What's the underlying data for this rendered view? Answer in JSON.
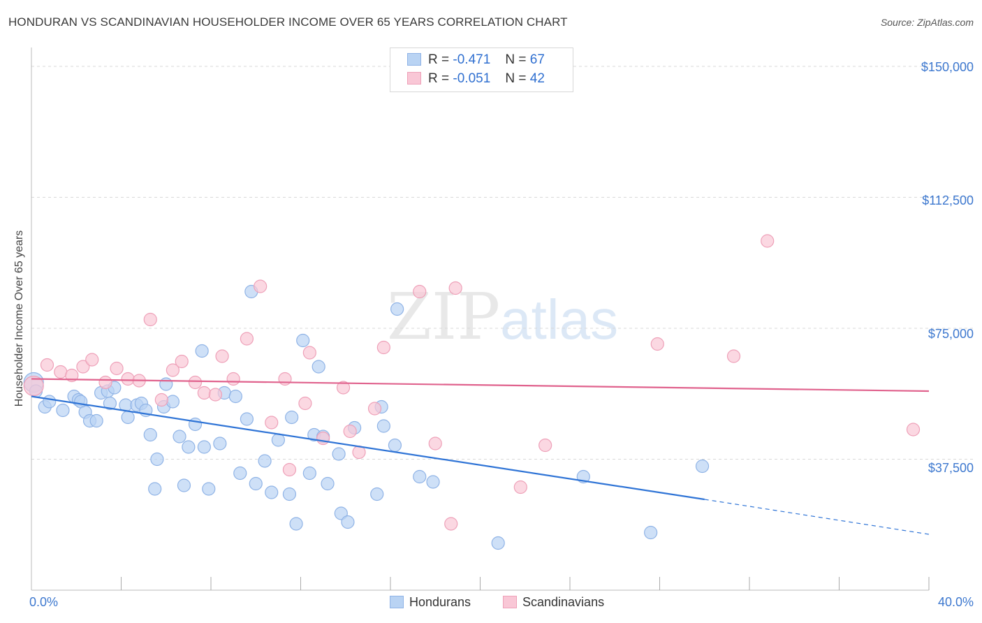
{
  "title": "HONDURAN VS SCANDINAVIAN HOUSEHOLDER INCOME OVER 65 YEARS CORRELATION CHART",
  "source": "Source: ZipAtlas.com",
  "watermark": {
    "zip": "ZIP",
    "atlas": "atlas"
  },
  "legend": {
    "rows": [
      {
        "r_label": "R =",
        "r_value": "-0.471",
        "n_label": "N =",
        "n_value": "67"
      },
      {
        "r_label": "R =",
        "r_value": "-0.051",
        "n_label": "N =",
        "n_value": "42"
      }
    ]
  },
  "colors": {
    "blue_fill": "#b9d3f3",
    "blue_stroke": "#8fb3e6",
    "blue_line": "#2f74d6",
    "pink_fill": "#f9c7d6",
    "pink_stroke": "#eea0b8",
    "pink_line": "#e0628d",
    "grid": "#d8d8d8",
    "tick_text": "#3d78cf"
  },
  "chart_data": {
    "type": "scatter",
    "title": "HONDURAN VS SCANDINAVIAN HOUSEHOLDER INCOME OVER 65 YEARS CORRELATION CHART",
    "xlabel": "",
    "ylabel": "Householder Income Over 65 years",
    "xlim": [
      0,
      40
    ],
    "ylim": [
      0,
      157000
    ],
    "x_tick_labels": [
      "0.0%",
      "40.0%"
    ],
    "y_ticks": [
      37500,
      75000,
      112500,
      150000
    ],
    "y_tick_labels": [
      "$37,500",
      "$75,000",
      "$112,500",
      "$150,000"
    ],
    "grid": true,
    "legend_position": "bottom",
    "series": [
      {
        "name": "Hondurans",
        "r": -0.471,
        "n": 67,
        "trend": {
          "x0": 0,
          "y0": 55500,
          "x_solid_end": 30,
          "y_solid_end": 26000,
          "x1": 40,
          "y1": 16000
        },
        "points": [
          [
            0.1,
            59500
          ],
          [
            0.2,
            57000
          ],
          [
            0.6,
            52500
          ],
          [
            0.8,
            54000
          ],
          [
            1.4,
            51500
          ],
          [
            1.9,
            55500
          ],
          [
            2.1,
            54500
          ],
          [
            2.2,
            54000
          ],
          [
            2.4,
            51000
          ],
          [
            2.6,
            48500
          ],
          [
            2.9,
            48500
          ],
          [
            3.1,
            56500
          ],
          [
            3.4,
            57000
          ],
          [
            3.5,
            53500
          ],
          [
            3.7,
            58000
          ],
          [
            4.2,
            53000
          ],
          [
            4.3,
            49500
          ],
          [
            4.7,
            53000
          ],
          [
            4.9,
            53500
          ],
          [
            5.1,
            51500
          ],
          [
            5.3,
            44500
          ],
          [
            5.6,
            37500
          ],
          [
            5.9,
            52500
          ],
          [
            6.0,
            59000
          ],
          [
            6.3,
            54000
          ],
          [
            6.6,
            44000
          ],
          [
            6.8,
            30000
          ],
          [
            7.0,
            41000
          ],
          [
            7.3,
            47500
          ],
          [
            7.6,
            68500
          ],
          [
            7.7,
            41000
          ],
          [
            7.9,
            29000
          ],
          [
            8.4,
            42000
          ],
          [
            8.6,
            56500
          ],
          [
            9.1,
            55500
          ],
          [
            9.3,
            33500
          ],
          [
            9.6,
            49000
          ],
          [
            9.8,
            85500
          ],
          [
            10.0,
            30500
          ],
          [
            10.4,
            37000
          ],
          [
            10.7,
            28000
          ],
          [
            11.0,
            43000
          ],
          [
            11.5,
            27500
          ],
          [
            11.6,
            49500
          ],
          [
            11.8,
            19000
          ],
          [
            12.1,
            71500
          ],
          [
            12.4,
            33500
          ],
          [
            12.6,
            44500
          ],
          [
            12.8,
            64000
          ],
          [
            13.0,
            44000
          ],
          [
            13.2,
            30500
          ],
          [
            13.7,
            39000
          ],
          [
            13.8,
            22000
          ],
          [
            14.1,
            19500
          ],
          [
            14.4,
            46500
          ],
          [
            15.4,
            27500
          ],
          [
            15.6,
            52500
          ],
          [
            15.7,
            47000
          ],
          [
            16.2,
            41500
          ],
          [
            16.3,
            80500
          ],
          [
            17.3,
            32500
          ],
          [
            17.9,
            31000
          ],
          [
            20.8,
            13500
          ],
          [
            24.6,
            32500
          ],
          [
            27.6,
            16500
          ],
          [
            29.9,
            35500
          ],
          [
            5.5,
            29000
          ]
        ]
      },
      {
        "name": "Scandinavians",
        "r": -0.051,
        "n": 42,
        "trend": {
          "x0": 0,
          "y0": 60500,
          "x1": 40,
          "y1": 57000
        },
        "points": [
          [
            0.1,
            58500
          ],
          [
            0.7,
            64500
          ],
          [
            1.3,
            62500
          ],
          [
            1.8,
            61500
          ],
          [
            2.3,
            64000
          ],
          [
            2.7,
            66000
          ],
          [
            3.3,
            59500
          ],
          [
            3.8,
            63500
          ],
          [
            4.3,
            60500
          ],
          [
            4.8,
            60000
          ],
          [
            5.3,
            77500
          ],
          [
            5.8,
            54500
          ],
          [
            6.3,
            63000
          ],
          [
            6.7,
            65500
          ],
          [
            7.3,
            59500
          ],
          [
            7.7,
            56500
          ],
          [
            8.2,
            56000
          ],
          [
            8.5,
            67000
          ],
          [
            9.0,
            60500
          ],
          [
            9.6,
            72000
          ],
          [
            10.2,
            87000
          ],
          [
            10.7,
            48000
          ],
          [
            11.3,
            60500
          ],
          [
            11.5,
            34500
          ],
          [
            12.2,
            53500
          ],
          [
            12.4,
            68000
          ],
          [
            13.0,
            43500
          ],
          [
            13.9,
            58000
          ],
          [
            14.2,
            45500
          ],
          [
            14.6,
            39500
          ],
          [
            15.3,
            52000
          ],
          [
            15.7,
            69500
          ],
          [
            17.3,
            85500
          ],
          [
            18.0,
            42000
          ],
          [
            18.7,
            19000
          ],
          [
            18.9,
            86500
          ],
          [
            21.8,
            29500
          ],
          [
            22.9,
            41500
          ],
          [
            27.9,
            70500
          ],
          [
            31.3,
            67000
          ],
          [
            32.8,
            100000
          ],
          [
            39.3,
            46000
          ]
        ]
      }
    ]
  },
  "bottom_legend": {
    "items": [
      "Hondurans",
      "Scandinavians"
    ]
  }
}
